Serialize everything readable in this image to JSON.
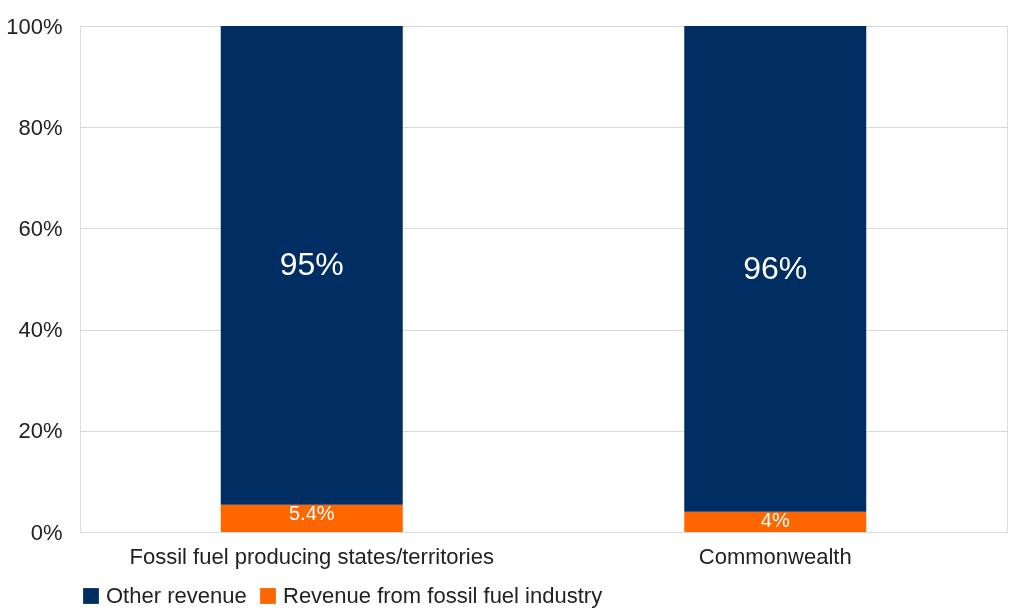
{
  "chart_data": {
    "type": "bar",
    "stacked": true,
    "categories": [
      "Fossil fuel producing states/territories",
      "Commonwealth"
    ],
    "series": [
      {
        "name": "Revenue from fossil fuel industry",
        "color": "#ff6600",
        "values": [
          5.4,
          4
        ],
        "value_labels": [
          "5.4%",
          "4%"
        ]
      },
      {
        "name": "Other revenue",
        "color": "#002d62",
        "values": [
          94.6,
          96
        ],
        "value_labels": [
          "95%",
          "96%"
        ]
      }
    ],
    "ylim": [
      0,
      100
    ],
    "yticks": [
      {
        "value": 0,
        "label": "0%"
      },
      {
        "value": 20,
        "label": "20%"
      },
      {
        "value": 40,
        "label": "40%"
      },
      {
        "value": 60,
        "label": "60%"
      },
      {
        "value": 80,
        "label": "80%"
      },
      {
        "value": 100,
        "label": "100%"
      }
    ],
    "grid": "y",
    "legend": "bottom"
  }
}
